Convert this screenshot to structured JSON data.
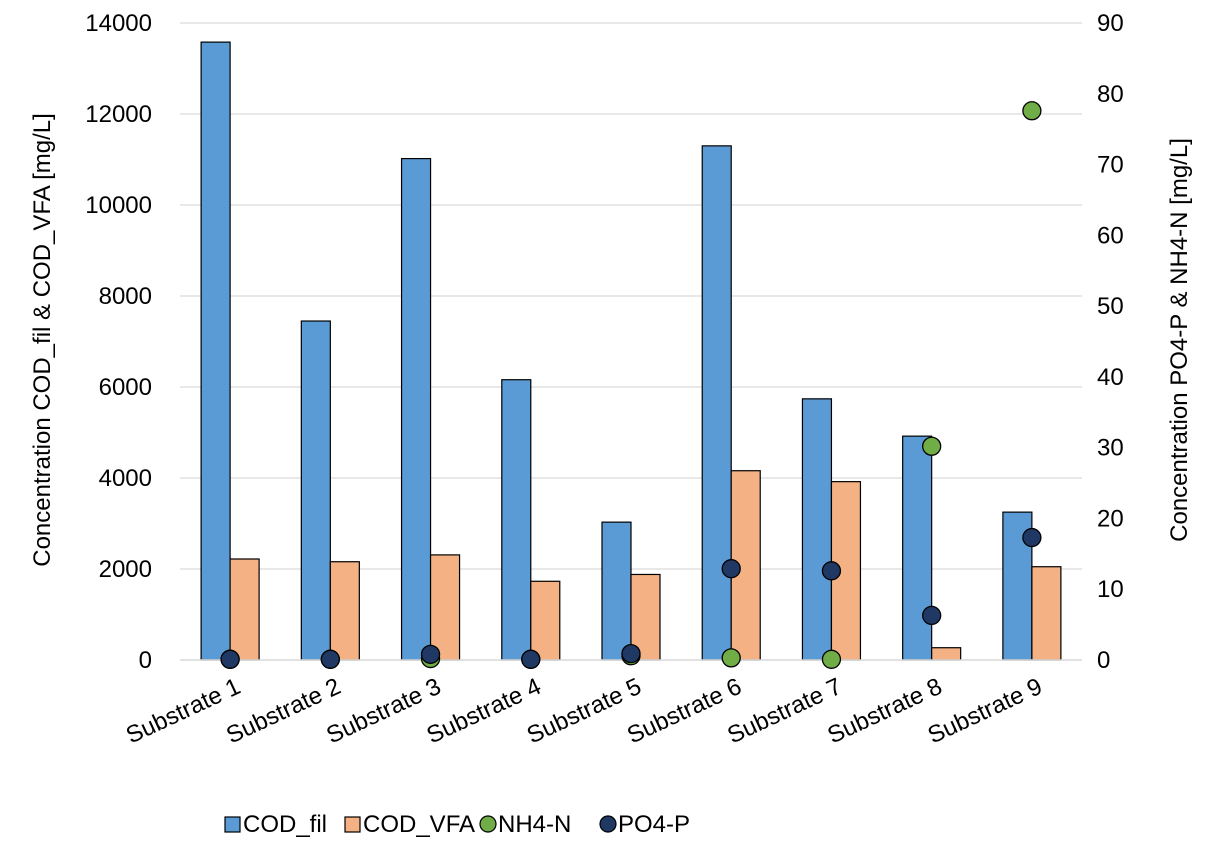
{
  "chart_data": {
    "type": "bar",
    "title": "",
    "categories": [
      "Substrate 1",
      "Substrate 2",
      "Substrate 3",
      "Substrate 4",
      "Substrate 5",
      "Substrate 6",
      "Substrate 7",
      "Substrate 8",
      "Substrate 9"
    ],
    "series": [
      {
        "name": "COD_fil",
        "type": "bar",
        "axis": "left",
        "color": "#5b9bd5",
        "values": [
          13580,
          7450,
          11020,
          6160,
          3030,
          11300,
          5740,
          4920,
          3250
        ]
      },
      {
        "name": "COD_VFA",
        "type": "bar",
        "axis": "left",
        "color": "#f4b183",
        "values": [
          2220,
          2160,
          2310,
          1730,
          1880,
          4160,
          3920,
          270,
          2050
        ]
      },
      {
        "name": "NH4-N",
        "type": "scatter",
        "axis": "right",
        "color": "#70ad47",
        "values": [
          0.1,
          0.1,
          0.2,
          0.1,
          0.6,
          0.3,
          0.1,
          30.2,
          77.6
        ]
      },
      {
        "name": "PO4-P",
        "type": "scatter",
        "axis": "right",
        "color": "#203864",
        "values": [
          0.1,
          0.1,
          0.8,
          0.1,
          0.9,
          12.9,
          12.6,
          6.3,
          17.3
        ]
      }
    ],
    "ylabel": "Concentration COD_fil & COD_VFA [mg/L]",
    "y2label": "Concentration PO4-P & NH4-N [mg/L]",
    "ylim": [
      0,
      14000
    ],
    "y2lim": [
      0,
      90
    ],
    "yticks": [
      "0",
      "2000",
      "4000",
      "6000",
      "8000",
      "10000",
      "12000",
      "14000"
    ],
    "y2ticks": [
      "0",
      "10",
      "20",
      "30",
      "40",
      "50",
      "60",
      "70",
      "80",
      "90"
    ],
    "grid": true,
    "legend": "bottom"
  }
}
